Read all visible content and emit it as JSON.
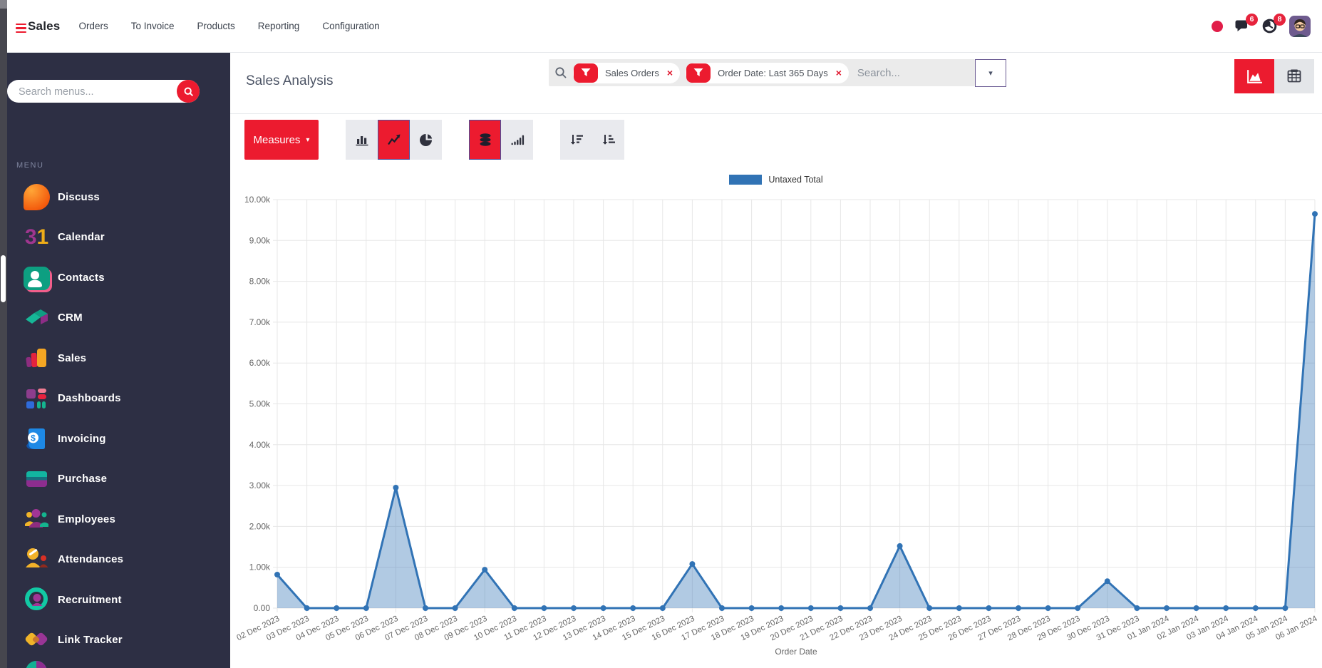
{
  "navbar": {
    "app_name": "Sales",
    "menus": [
      "Orders",
      "To Invoice",
      "Products",
      "Reporting",
      "Configuration"
    ],
    "message_badge": "6",
    "activity_badge": "8"
  },
  "sidebar": {
    "search_placeholder": "Search menus...",
    "menu_label": "MENU",
    "items": [
      {
        "label": "Discuss"
      },
      {
        "label": "Calendar"
      },
      {
        "label": "Contacts"
      },
      {
        "label": "CRM"
      },
      {
        "label": "Sales"
      },
      {
        "label": "Dashboards"
      },
      {
        "label": "Invoicing"
      },
      {
        "label": "Purchase"
      },
      {
        "label": "Employees"
      },
      {
        "label": "Attendances"
      },
      {
        "label": "Recruitment"
      },
      {
        "label": "Link Tracker"
      }
    ]
  },
  "content": {
    "title": "Sales Analysis",
    "search": {
      "facets": [
        {
          "label": "Sales Orders"
        },
        {
          "label": "Order Date: Last 365 Days"
        }
      ],
      "placeholder": "Search..."
    },
    "toolbar": {
      "measures_label": "Measures"
    }
  },
  "icons": {
    "caret_down": "▾",
    "close": "×"
  },
  "accent_colors": {
    "primary_red": "#ec1b2f",
    "sidebar_bg": "#2d2f44",
    "active_border": "#4d509e"
  },
  "chart_data": {
    "type": "line",
    "title": "",
    "xlabel": "Order Date",
    "ylabel": "",
    "ylim": [
      0,
      10000
    ],
    "ytick_labels": [
      "0.00",
      "1.00k",
      "2.00k",
      "3.00k",
      "4.00k",
      "5.00k",
      "6.00k",
      "7.00k",
      "8.00k",
      "9.00k",
      "10.00k"
    ],
    "legend_position": "top",
    "grid": true,
    "categories": [
      "02 Dec 2023",
      "03 Dec 2023",
      "04 Dec 2023",
      "05 Dec 2023",
      "06 Dec 2023",
      "07 Dec 2023",
      "08 Dec 2023",
      "09 Dec 2023",
      "10 Dec 2023",
      "11 Dec 2023",
      "12 Dec 2023",
      "13 Dec 2023",
      "14 Dec 2023",
      "15 Dec 2023",
      "16 Dec 2023",
      "17 Dec 2023",
      "18 Dec 2023",
      "19 Dec 2023",
      "20 Dec 2023",
      "21 Dec 2023",
      "22 Dec 2023",
      "23 Dec 2023",
      "24 Dec 2023",
      "25 Dec 2023",
      "26 Dec 2023",
      "27 Dec 2023",
      "28 Dec 2023",
      "29 Dec 2023",
      "30 Dec 2023",
      "31 Dec 2023",
      "01 Jan 2024",
      "02 Jan 2024",
      "03 Jan 2024",
      "04 Jan 2024",
      "05 Jan 2024",
      "06 Jan 2024"
    ],
    "series": [
      {
        "name": "Untaxed Total",
        "values": [
          820,
          0,
          0,
          0,
          2950,
          0,
          0,
          940,
          0,
          0,
          0,
          0,
          0,
          0,
          1080,
          0,
          0,
          0,
          0,
          0,
          0,
          1520,
          0,
          0,
          0,
          0,
          0,
          0,
          660,
          0,
          0,
          0,
          0,
          0,
          0,
          9650
        ]
      }
    ],
    "colors": {
      "line": "#3173b5",
      "fill": "rgba(49,115,181,0.38)",
      "point": "#3173b5"
    }
  }
}
